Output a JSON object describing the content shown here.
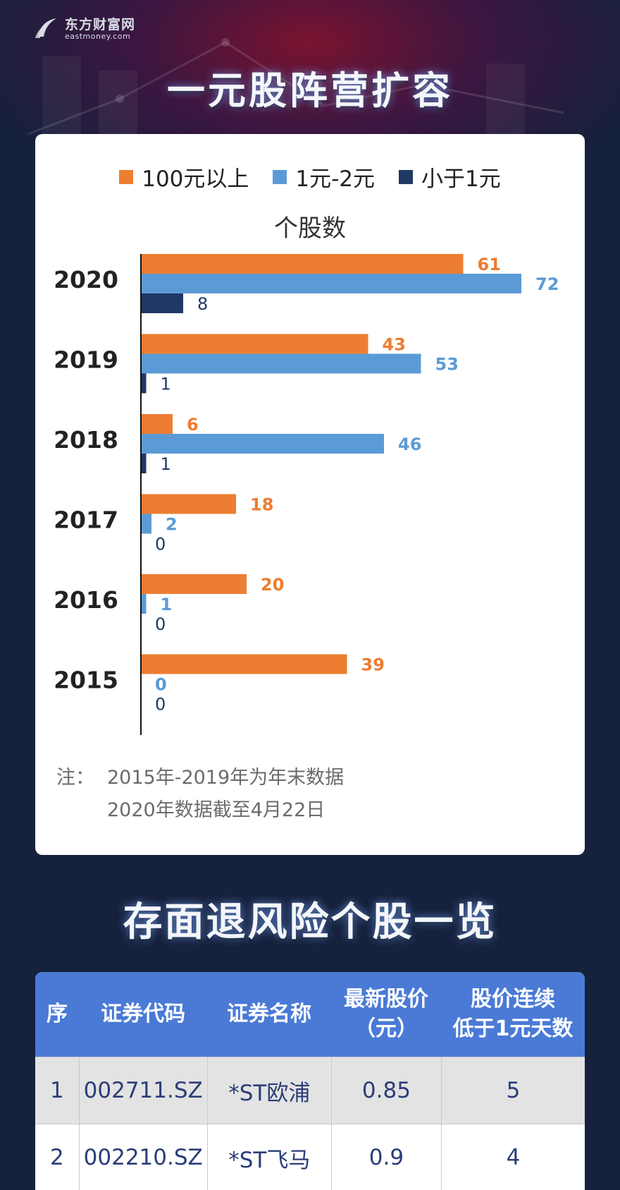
{
  "brand": {
    "name_cn": "东方财富网",
    "name_en": "eastmoney.com"
  },
  "title": "一元股阵营扩容",
  "chart_data": {
    "type": "bar",
    "orientation": "horizontal",
    "title": "个股数",
    "categories": [
      "2020",
      "2019",
      "2018",
      "2017",
      "2016",
      "2015"
    ],
    "series": [
      {
        "name": "100元以上",
        "color": "#ed7d31",
        "values": [
          61,
          43,
          6,
          18,
          20,
          39
        ]
      },
      {
        "name": "1元-2元",
        "color": "#5b9bd5",
        "values": [
          72,
          53,
          46,
          2,
          1,
          0
        ]
      },
      {
        "name": "小于1元",
        "color": "#203864",
        "values": [
          8,
          1,
          1,
          0,
          0,
          0
        ]
      }
    ],
    "xlim": [
      0,
      72
    ],
    "grid": false,
    "legend": "top-center"
  },
  "note": {
    "label": "注：",
    "lines": [
      "2015年-2019年为年末数据",
      "2020年数据截至4月22日"
    ]
  },
  "section_title": "存面退风险个股一览",
  "table": {
    "headers": [
      "序",
      "证券代码",
      "证券名称",
      "最新股价\n（元）",
      "股价连续\n低于1元天数"
    ],
    "rows": [
      [
        "1",
        "002711.SZ",
        "*ST欧浦",
        "0.85",
        "5"
      ],
      [
        "2",
        "002210.SZ",
        "*ST飞马",
        "0.9",
        "4"
      ]
    ]
  }
}
